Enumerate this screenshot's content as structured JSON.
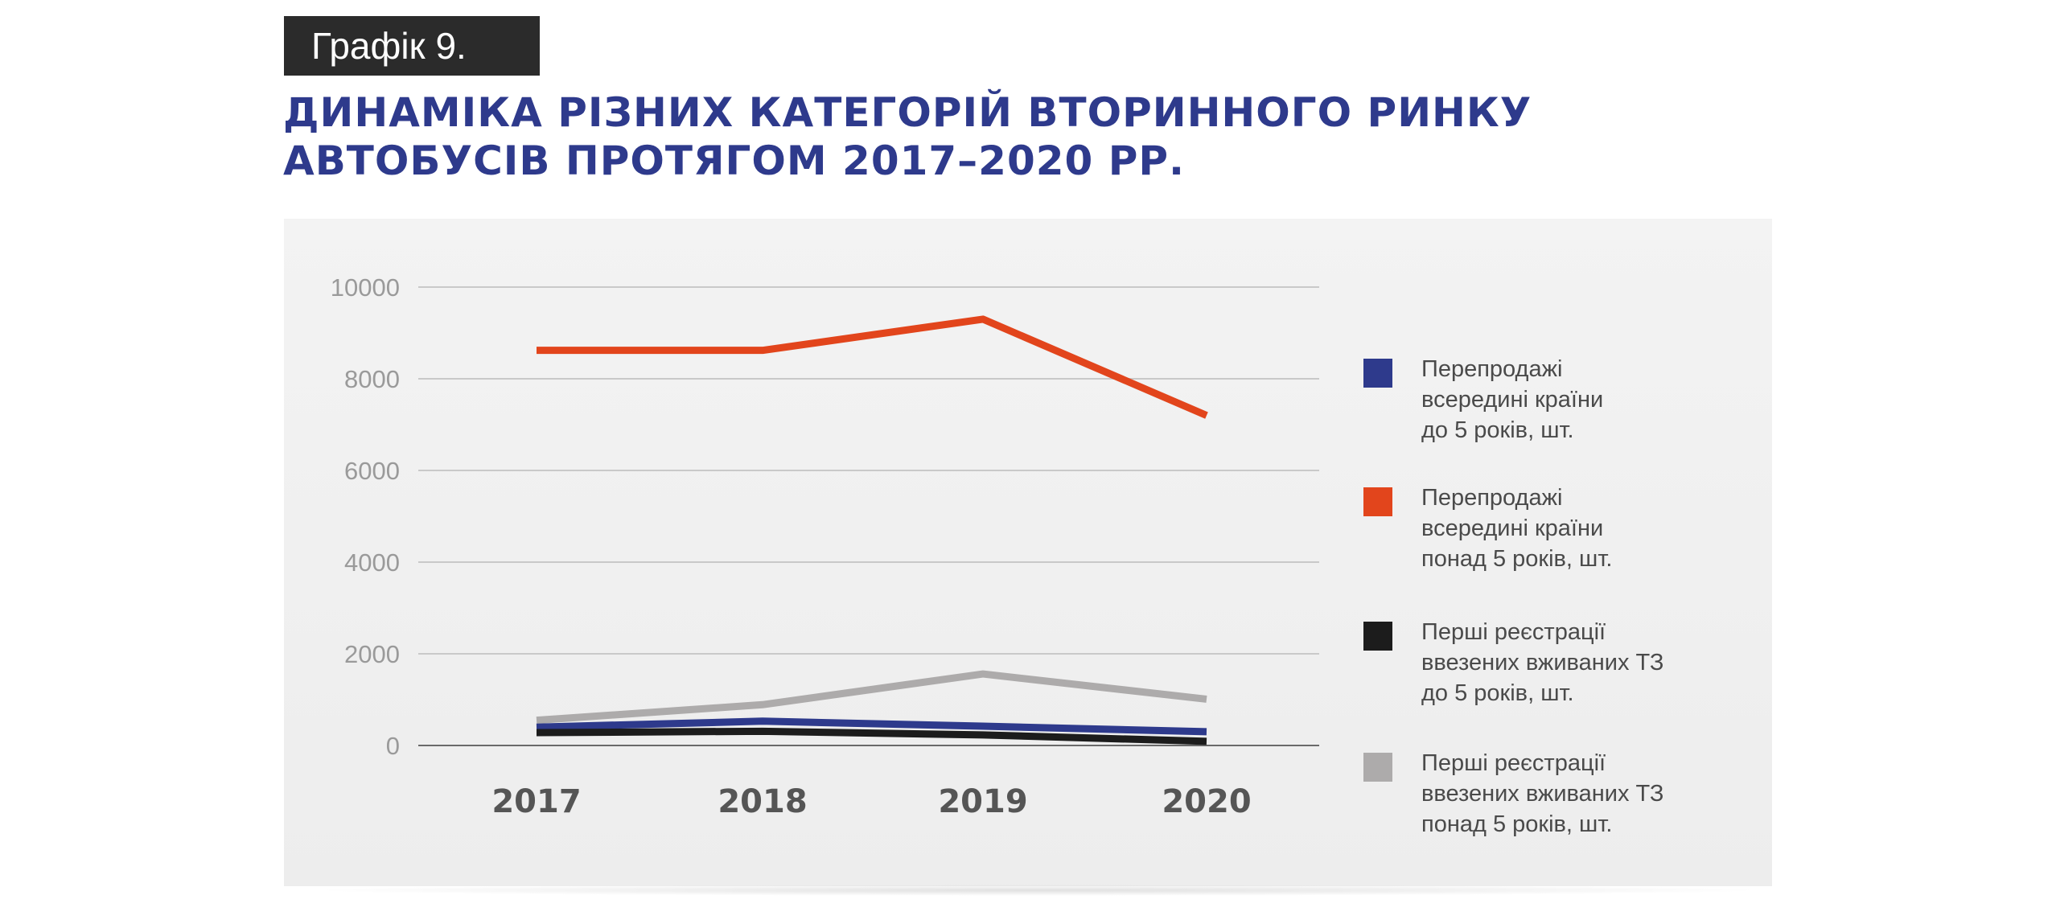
{
  "header": {
    "badge": "Графік 9.",
    "title_line1": "ДИНАМІКА РІЗНИХ КАТЕГОРІЙ ВТОРИННОГО РИНКУ",
    "title_line2": "АВТОБУСІВ ПРОТЯГОМ 2017–2020 РР."
  },
  "chart_data": {
    "type": "line",
    "title": "",
    "xlabel": "",
    "ylabel": "",
    "x": [
      "2017",
      "2018",
      "2019",
      "2020"
    ],
    "ylim": [
      0,
      10000
    ],
    "yticks": [
      "0",
      "2000",
      "4000",
      "6000",
      "8000",
      "10000"
    ],
    "grid": true,
    "legend_position": "right",
    "series": [
      {
        "name": "Перепродажі всередині країни до 5 років, шт.",
        "label_lines": [
          "Перепродажі",
          "всередині країни",
          "до 5 років, шт."
        ],
        "color": "#2e3a8c",
        "values": [
          400,
          530,
          420,
          300
        ]
      },
      {
        "name": "Перепродажі всередині країни понад 5 років, шт.",
        "label_lines": [
          "Перепродажі",
          "всередині країни",
          "понад 5 років, шт."
        ],
        "color": "#e2451c",
        "values": [
          8620,
          8620,
          9300,
          7200
        ]
      },
      {
        "name": "Перші реєстрації ввезених вживаних ТЗ до 5 років, шт.",
        "label_lines": [
          "Перші реєстрації",
          "ввезених вживаних ТЗ",
          "до 5 років, шт."
        ],
        "color": "#1c1c1c",
        "values": [
          280,
          310,
          230,
          90
        ]
      },
      {
        "name": "Перші реєстрації ввезених вживаних ТЗ понад 5 років, шт.",
        "label_lines": [
          "Перші реєстрації",
          "ввезених вживаних ТЗ",
          "понад 5 років, шт."
        ],
        "color": "#adabab",
        "values": [
          550,
          890,
          1560,
          1010
        ]
      }
    ],
    "draw_order": [
      3,
      0,
      2,
      1
    ]
  }
}
